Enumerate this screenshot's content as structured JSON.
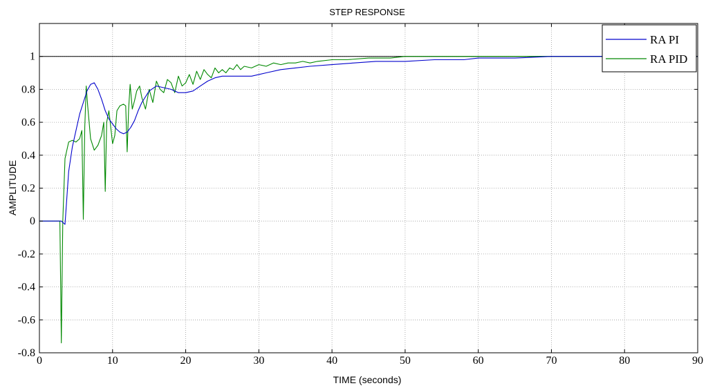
{
  "chart_data": {
    "type": "line",
    "title": "STEP RESPONSE",
    "xlabel": "TIME (seconds)",
    "ylabel": "AMPLITUDE",
    "xlim": [
      0,
      90
    ],
    "ylim": [
      -0.8,
      1.2
    ],
    "x_ticks": [
      0,
      10,
      20,
      30,
      40,
      50,
      60,
      70,
      80,
      90
    ],
    "y_ticks": [
      -0.8,
      -0.6,
      -0.4,
      -0.2,
      0,
      0.2,
      0.4,
      0.6,
      0.8,
      1
    ],
    "x_tick_labels": [
      "0",
      "10",
      "20",
      "30",
      "40",
      "50",
      "60",
      "70",
      "80",
      "90"
    ],
    "y_tick_labels": [
      "-0.8",
      "-0.6",
      "-0.4",
      "-0.2",
      "0",
      "0.2",
      "0.4",
      "0.6",
      "0.8",
      "1"
    ],
    "grid": true,
    "legend_position": "top-right",
    "reference_line": {
      "y": 1,
      "color": "#000000"
    },
    "series": [
      {
        "name": "RA PI",
        "color": "#0000cc",
        "points": [
          [
            0,
            0
          ],
          [
            3,
            0
          ],
          [
            3.5,
            -0.02
          ],
          [
            4,
            0.3
          ],
          [
            4.5,
            0.45
          ],
          [
            5,
            0.55
          ],
          [
            5.5,
            0.65
          ],
          [
            6,
            0.72
          ],
          [
            6.5,
            0.79
          ],
          [
            7,
            0.83
          ],
          [
            7.5,
            0.84
          ],
          [
            8,
            0.8
          ],
          [
            8.5,
            0.74
          ],
          [
            9,
            0.67
          ],
          [
            9.5,
            0.62
          ],
          [
            10,
            0.59
          ],
          [
            10.5,
            0.56
          ],
          [
            11,
            0.54
          ],
          [
            11.5,
            0.53
          ],
          [
            12,
            0.54
          ],
          [
            12.5,
            0.57
          ],
          [
            13,
            0.61
          ],
          [
            13.5,
            0.67
          ],
          [
            14,
            0.72
          ],
          [
            15,
            0.79
          ],
          [
            16,
            0.82
          ],
          [
            17,
            0.81
          ],
          [
            18,
            0.8
          ],
          [
            19,
            0.78
          ],
          [
            20,
            0.78
          ],
          [
            21,
            0.79
          ],
          [
            22,
            0.82
          ],
          [
            23,
            0.85
          ],
          [
            24,
            0.87
          ],
          [
            25,
            0.88
          ],
          [
            27,
            0.88
          ],
          [
            29,
            0.88
          ],
          [
            31,
            0.9
          ],
          [
            33,
            0.92
          ],
          [
            35,
            0.93
          ],
          [
            37,
            0.94
          ],
          [
            40,
            0.95
          ],
          [
            43,
            0.96
          ],
          [
            46,
            0.97
          ],
          [
            50,
            0.97
          ],
          [
            54,
            0.98
          ],
          [
            58,
            0.98
          ],
          [
            60,
            0.99
          ],
          [
            65,
            0.99
          ],
          [
            70,
            1.0
          ],
          [
            80,
            1.0
          ],
          [
            90,
            1.0
          ]
        ]
      },
      {
        "name": "RA PID",
        "color": "#008800",
        "points": [
          [
            0,
            0
          ],
          [
            2.8,
            0
          ],
          [
            3,
            -0.74
          ],
          [
            3.2,
            0
          ],
          [
            3.5,
            0.38
          ],
          [
            4,
            0.48
          ],
          [
            4.5,
            0.49
          ],
          [
            5,
            0.48
          ],
          [
            5.5,
            0.5
          ],
          [
            5.8,
            0.55
          ],
          [
            6,
            0.01
          ],
          [
            6.2,
            0.57
          ],
          [
            6.4,
            0.82
          ],
          [
            6.6,
            0.7
          ],
          [
            7,
            0.5
          ],
          [
            7.5,
            0.43
          ],
          [
            8,
            0.46
          ],
          [
            8.5,
            0.52
          ],
          [
            8.8,
            0.6
          ],
          [
            9,
            0.18
          ],
          [
            9.2,
            0.6
          ],
          [
            9.5,
            0.67
          ],
          [
            10,
            0.47
          ],
          [
            10.3,
            0.52
          ],
          [
            10.6,
            0.67
          ],
          [
            11,
            0.7
          ],
          [
            11.5,
            0.71
          ],
          [
            11.8,
            0.7
          ],
          [
            12,
            0.42
          ],
          [
            12.2,
            0.68
          ],
          [
            12.4,
            0.83
          ],
          [
            12.7,
            0.68
          ],
          [
            13,
            0.73
          ],
          [
            13.3,
            0.79
          ],
          [
            13.7,
            0.82
          ],
          [
            14,
            0.75
          ],
          [
            14.5,
            0.68
          ],
          [
            15,
            0.8
          ],
          [
            15.5,
            0.72
          ],
          [
            16,
            0.85
          ],
          [
            16.5,
            0.8
          ],
          [
            17,
            0.78
          ],
          [
            17.5,
            0.86
          ],
          [
            18,
            0.84
          ],
          [
            18.5,
            0.78
          ],
          [
            19,
            0.88
          ],
          [
            19.5,
            0.82
          ],
          [
            20,
            0.84
          ],
          [
            20.5,
            0.89
          ],
          [
            21,
            0.83
          ],
          [
            21.5,
            0.91
          ],
          [
            22,
            0.86
          ],
          [
            22.5,
            0.92
          ],
          [
            23,
            0.89
          ],
          [
            23.5,
            0.87
          ],
          [
            24,
            0.93
          ],
          [
            24.5,
            0.9
          ],
          [
            25,
            0.92
          ],
          [
            25.5,
            0.9
          ],
          [
            26,
            0.93
          ],
          [
            26.5,
            0.92
          ],
          [
            27,
            0.95
          ],
          [
            27.5,
            0.92
          ],
          [
            28,
            0.94
          ],
          [
            29,
            0.93
          ],
          [
            30,
            0.95
          ],
          [
            31,
            0.94
          ],
          [
            32,
            0.96
          ],
          [
            33,
            0.95
          ],
          [
            34,
            0.96
          ],
          [
            35,
            0.96
          ],
          [
            36,
            0.97
          ],
          [
            37,
            0.96
          ],
          [
            38,
            0.97
          ],
          [
            40,
            0.98
          ],
          [
            42,
            0.98
          ],
          [
            45,
            0.99
          ],
          [
            48,
            0.99
          ],
          [
            50,
            1.0
          ],
          [
            55,
            1.0
          ],
          [
            60,
            1.0
          ],
          [
            70,
            1.0
          ],
          [
            80,
            1.0
          ],
          [
            90,
            1.0
          ]
        ]
      }
    ]
  }
}
